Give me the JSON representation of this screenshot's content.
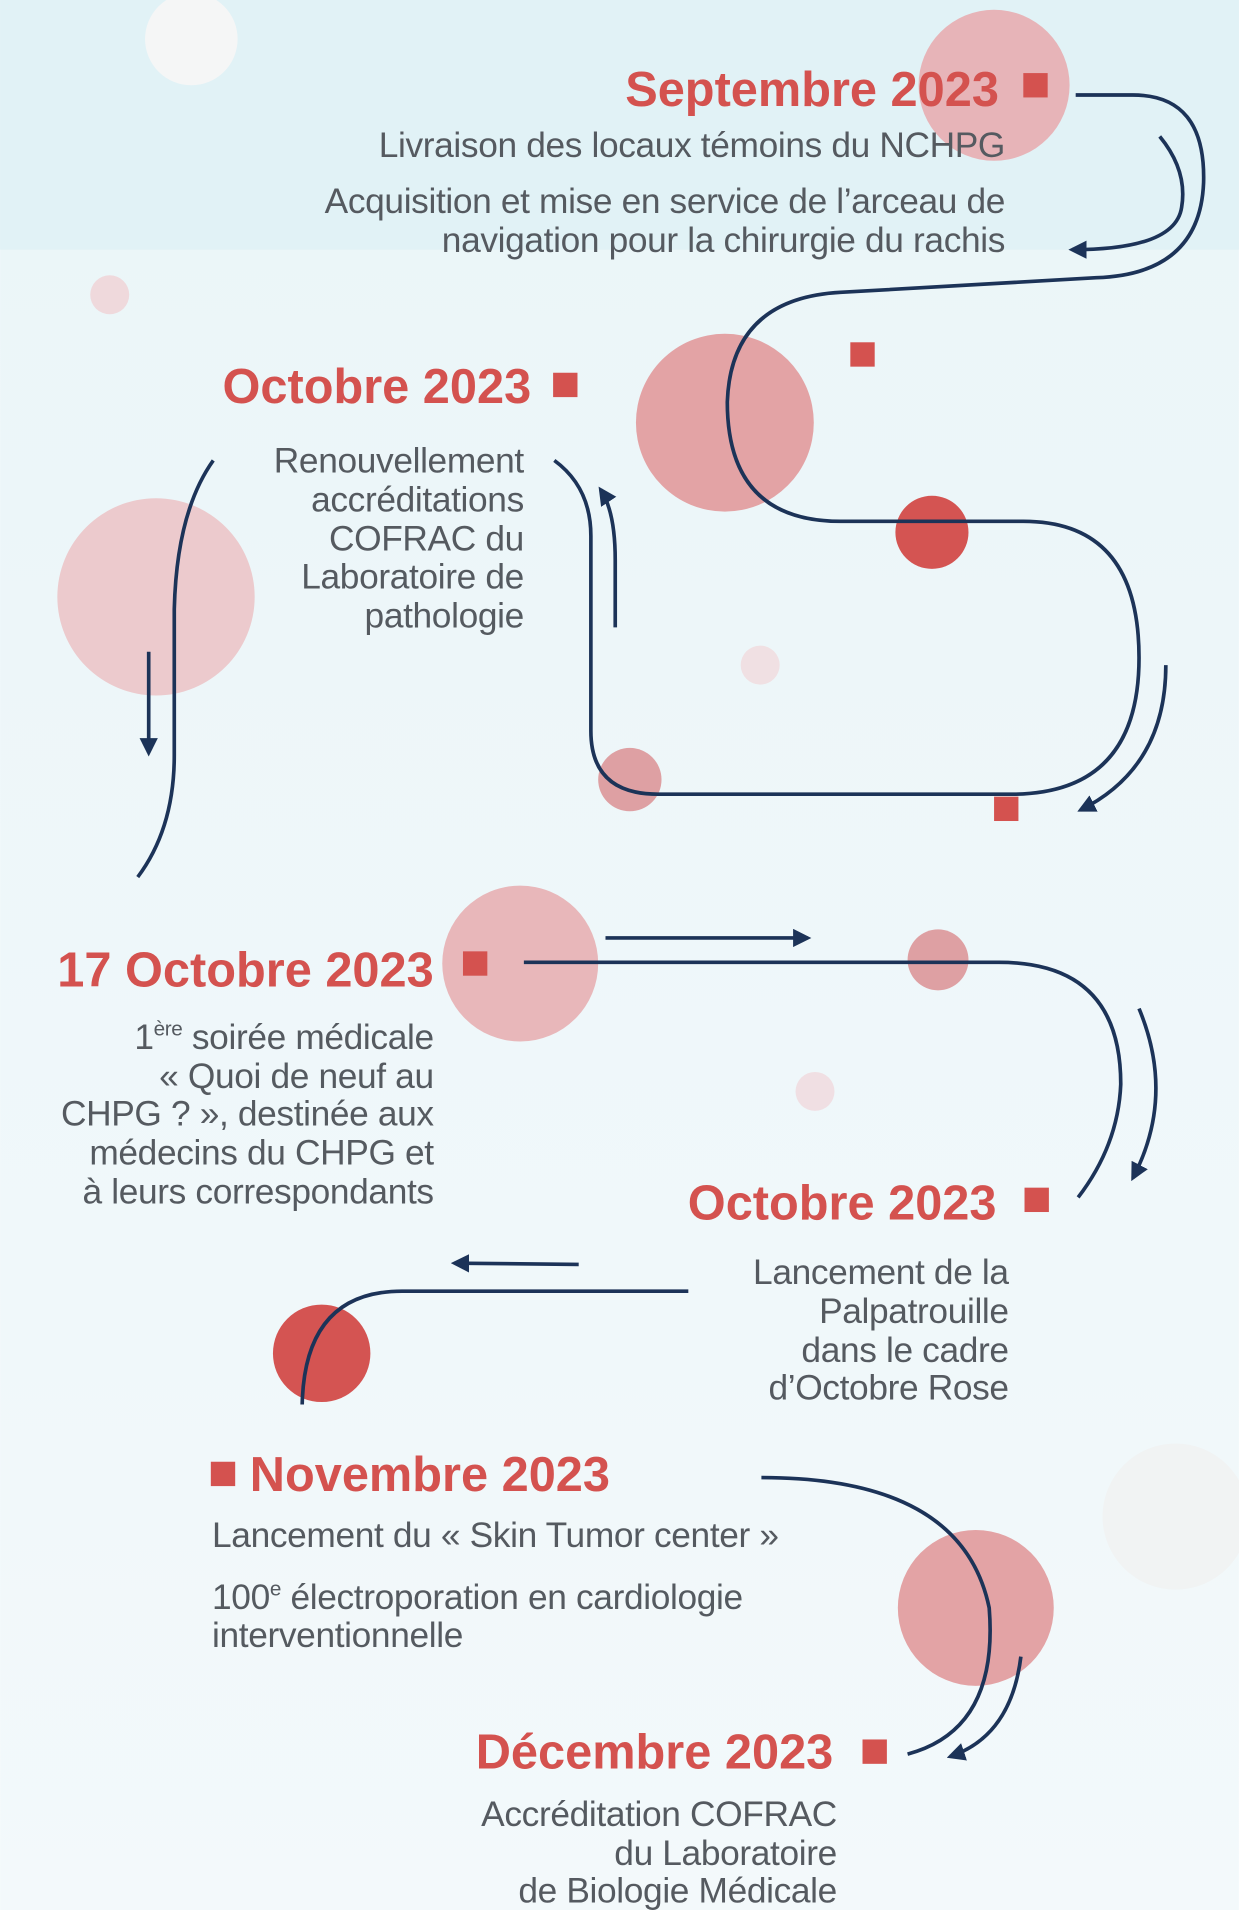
{
  "events": [
    {
      "date": "Septembre 2023",
      "lines": [
        "Livraison des locaux témoins du NCHPG",
        "Acquisition et mise en service de l’arceau de",
        "navigation pour la chirurgie du rachis"
      ]
    },
    {
      "date": "Octobre 2023",
      "lines": [
        "Renouvellement",
        "accréditations",
        "COFRAC du",
        "Laboratoire de",
        "pathologie"
      ]
    },
    {
      "date": "17 Octobre 2023",
      "lines": [
        [
          "1",
          "ère",
          " soirée médicale"
        ],
        "« Quoi de neuf au",
        "CHPG ? », destinée aux",
        "médecins du CHPG et",
        "à leurs correspondants"
      ]
    },
    {
      "date": "Octobre 2023",
      "lines": [
        "Lancement de la",
        "Palpatrouille",
        "dans le cadre",
        "d’Octobre Rose"
      ]
    },
    {
      "date": "Novembre 2023",
      "lines": [
        "Lancement du « Skin Tumor center »",
        [
          "100",
          "e",
          " électroporation en cardiologie"
        ],
        "interventionnelle"
      ]
    },
    {
      "date": "Décembre 2023",
      "lines": [
        "Accréditation COFRAC",
        "du Laboratoire",
        "de Biologie Médicale"
      ]
    }
  ]
}
